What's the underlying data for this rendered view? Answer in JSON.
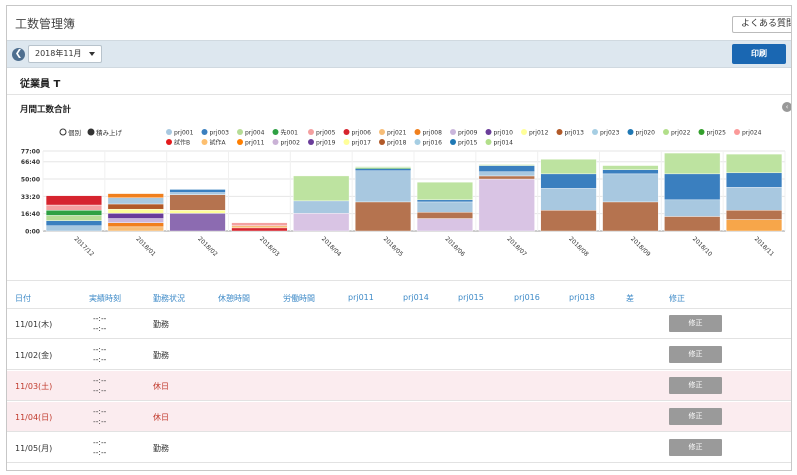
{
  "header": {
    "title": "工数管理簿",
    "faq_label": "よくある質問"
  },
  "toolbar": {
    "month": "2018年11月",
    "print_label": "印刷"
  },
  "employee": {
    "name": "従業員 T"
  },
  "chart_section": {
    "title": "月間工数合計"
  },
  "chart_data": {
    "type": "bar",
    "title": "",
    "xlabel": "",
    "ylabel": "",
    "stacked": true,
    "ylim": [
      0,
      77
    ],
    "y_ticks": [
      "0:00",
      "16:40",
      "33:20",
      "50:00",
      "66:40",
      "77:00"
    ],
    "y_tick_values": [
      0,
      16.67,
      33.33,
      50,
      66.67,
      77
    ],
    "grid": true,
    "legend_position": "top",
    "mode_options": [
      "個別",
      "積み上げ"
    ],
    "categories": [
      "2017/12",
      "2018/01",
      "2018/02",
      "2018/03",
      "2018/04",
      "2018/05",
      "2018/06",
      "2018/07",
      "2018/08",
      "2018/09",
      "2018/10",
      "2018/11"
    ],
    "legend": [
      {
        "name": "prj001",
        "color": "#a8c8e0"
      },
      {
        "name": "prj003",
        "color": "#3a7fbf"
      },
      {
        "name": "prj004",
        "color": "#b6dc96"
      },
      {
        "name": "先001",
        "color": "#2ea043"
      },
      {
        "name": "prj005",
        "color": "#f4a0a0"
      },
      {
        "name": "prj006",
        "color": "#d6242e"
      },
      {
        "name": "prj021",
        "color": "#f7bd77"
      },
      {
        "name": "prj008",
        "color": "#f07f1d"
      },
      {
        "name": "prj009",
        "color": "#cab6dc"
      },
      {
        "name": "prj010",
        "color": "#6a3d9a"
      },
      {
        "name": "prj012",
        "color": "#ffff99"
      },
      {
        "name": "prj013",
        "color": "#b15928"
      },
      {
        "name": "prj023",
        "color": "#a6cee3"
      },
      {
        "name": "prj020",
        "color": "#1f78b4"
      },
      {
        "name": "prj022",
        "color": "#b2df8a"
      },
      {
        "name": "prj025",
        "color": "#33a02c"
      },
      {
        "name": "prj024",
        "color": "#fb9a99"
      },
      {
        "name": "試作B",
        "color": "#e31a1c"
      },
      {
        "name": "試作A",
        "color": "#fdbf6f"
      },
      {
        "name": "prj011",
        "color": "#ff7f00"
      },
      {
        "name": "prj002",
        "color": "#cab2d6"
      },
      {
        "name": "prj019",
        "color": "#6a3d9a"
      },
      {
        "name": "prj017",
        "color": "#ffff99"
      },
      {
        "name": "prj018",
        "color": "#b15928"
      },
      {
        "name": "prj016",
        "color": "#a6cee3"
      },
      {
        "name": "prj015",
        "color": "#1f78b4"
      },
      {
        "name": "prj014",
        "color": "#b2df8a"
      }
    ],
    "stacks": [
      [
        {
          "v": 5,
          "c": "#a8c8e0"
        },
        {
          "v": 5,
          "c": "#3a7fbf"
        },
        {
          "v": 5,
          "c": "#b6dc96"
        },
        {
          "v": 5,
          "c": "#2ea043"
        },
        {
          "v": 5,
          "c": "#f4a0a0"
        },
        {
          "v": 9,
          "c": "#d6242e"
        }
      ],
      [
        {
          "v": 4,
          "c": "#f7bd77"
        },
        {
          "v": 4,
          "c": "#f07f1d"
        },
        {
          "v": 4,
          "c": "#cab6dc"
        },
        {
          "v": 5,
          "c": "#6a3d9a"
        },
        {
          "v": 4,
          "c": "#ffff99"
        },
        {
          "v": 5,
          "c": "#b15928"
        },
        {
          "v": 6,
          "c": "#a8c8e0"
        },
        {
          "v": 4,
          "c": "#f07f1d"
        }
      ],
      [
        {
          "v": 17,
          "c": "#8c6bb1"
        },
        {
          "v": 3,
          "c": "#ffff99"
        },
        {
          "v": 15,
          "c": "#b5734f"
        },
        {
          "v": 2,
          "c": "#a8c8e0"
        },
        {
          "v": 3,
          "c": "#3a7fbf"
        }
      ],
      [
        {
          "v": 3,
          "c": "#d6242e"
        },
        {
          "v": 2,
          "c": "#f7bd77"
        },
        {
          "v": 3,
          "c": "#f4a0a0"
        }
      ],
      [
        {
          "v": 17,
          "c": "#d9c4e4"
        },
        {
          "v": 12,
          "c": "#a8c8e0"
        },
        {
          "v": 24,
          "c": "#bde3a0"
        }
      ],
      [
        {
          "v": 28,
          "c": "#b5734f"
        },
        {
          "v": 30,
          "c": "#a8c8e0"
        },
        {
          "v": 2,
          "c": "#3a7fbf"
        },
        {
          "v": 1,
          "c": "#2ea043"
        },
        {
          "v": 1,
          "c": "#bde3a0"
        }
      ],
      [
        {
          "v": 12,
          "c": "#d9c4e4"
        },
        {
          "v": 6,
          "c": "#b5734f"
        },
        {
          "v": 10,
          "c": "#a8c8e0"
        },
        {
          "v": 2,
          "c": "#3a7fbf"
        },
        {
          "v": 17,
          "c": "#bde3a0"
        }
      ],
      [
        {
          "v": 50,
          "c": "#d9c4e4"
        },
        {
          "v": 3,
          "c": "#b5734f"
        },
        {
          "v": 4,
          "c": "#a8c8e0"
        },
        {
          "v": 6,
          "c": "#3a7fbf"
        },
        {
          "v": 1,
          "c": "#bde3a0"
        }
      ],
      [
        {
          "v": 20,
          "c": "#b5734f"
        },
        {
          "v": 21,
          "c": "#a8c8e0"
        },
        {
          "v": 14,
          "c": "#3a7fbf"
        },
        {
          "v": 14,
          "c": "#bde3a0"
        }
      ],
      [
        {
          "v": 28,
          "c": "#b5734f"
        },
        {
          "v": 27,
          "c": "#a8c8e0"
        },
        {
          "v": 4,
          "c": "#3a7fbf"
        },
        {
          "v": 4,
          "c": "#bde3a0"
        }
      ],
      [
        {
          "v": 14,
          "c": "#b5734f"
        },
        {
          "v": 16,
          "c": "#a8c8e0"
        },
        {
          "v": 25,
          "c": "#3a7fbf"
        },
        {
          "v": 20,
          "c": "#bde3a0"
        }
      ],
      [
        {
          "v": 11,
          "c": "#f7a64a"
        },
        {
          "v": 9,
          "c": "#b5734f"
        },
        {
          "v": 22,
          "c": "#a8c8e0"
        },
        {
          "v": 14,
          "c": "#3a7fbf"
        },
        {
          "v": 18,
          "c": "#bde3a0"
        }
      ]
    ]
  },
  "table": {
    "columns": [
      "日付",
      "実績時刻",
      "勤務状況",
      "休憩時間",
      "労働時間",
      "prj011",
      "prj014",
      "prj015",
      "prj016",
      "prj018",
      "差",
      "修正"
    ],
    "rows": [
      {
        "date": "11/01(木)",
        "start": "--:--",
        "end": "--:--",
        "status": "勤務",
        "edit": "修正",
        "holiday": false
      },
      {
        "date": "11/02(金)",
        "start": "--:--",
        "end": "--:--",
        "status": "勤務",
        "edit": "修正",
        "holiday": false
      },
      {
        "date": "11/03(土)",
        "start": "--:--",
        "end": "--:--",
        "status": "休日",
        "edit": "修正",
        "holiday": true
      },
      {
        "date": "11/04(日)",
        "start": "--:--",
        "end": "--:--",
        "status": "休日",
        "edit": "修正",
        "holiday": true
      },
      {
        "date": "11/05(月)",
        "start": "--:--",
        "end": "--:--",
        "status": "勤務",
        "edit": "修正",
        "holiday": false
      }
    ]
  }
}
